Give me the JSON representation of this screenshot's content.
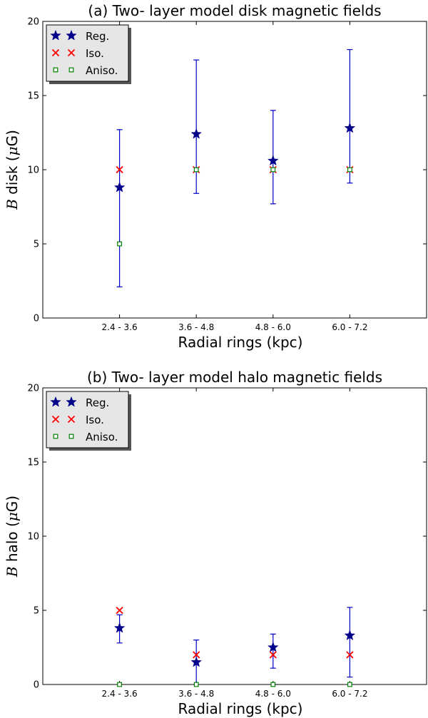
{
  "figure": {
    "legend_labels": [
      "Reg.",
      "Iso.",
      "Aniso."
    ],
    "colors": {
      "reg": "#00008b",
      "iso": "#ff0000",
      "aniso": "#008000",
      "errorbar": "#0000cc"
    }
  },
  "chart_data": [
    {
      "type": "scatter",
      "title": "(a) Two- layer model disk magnetic fields",
      "xlabel": "Radial rings (kpc)",
      "ylabel_var": "B",
      "ylabel_rest": " disk (",
      "ylabel_unit_mu": "μ",
      "ylabel_unit": "G)",
      "categories": [
        "2.4 - 3.6",
        "3.6 - 4.8",
        "4.8 - 6.0",
        "6.0 - 7.2"
      ],
      "ylim": [
        0,
        20
      ],
      "yticks": [
        "0",
        "5",
        "10",
        "15",
        "20"
      ],
      "grid": false,
      "legend_position": "top-left",
      "series": [
        {
          "name": "Reg.",
          "marker": "star",
          "values": [
            8.8,
            12.4,
            10.6,
            12.8
          ],
          "err_low": [
            2.1,
            8.4,
            7.7,
            9.1
          ],
          "err_high": [
            12.7,
            17.4,
            14.0,
            18.1
          ]
        },
        {
          "name": "Iso.",
          "marker": "x",
          "values": [
            10,
            10,
            10,
            10
          ]
        },
        {
          "name": "Aniso.",
          "marker": "square",
          "values": [
            5,
            10,
            10,
            10
          ]
        }
      ]
    },
    {
      "type": "scatter",
      "title": "(b) Two- layer model halo magnetic fields",
      "xlabel": "Radial rings (kpc)",
      "ylabel_var": "B",
      "ylabel_rest": " halo (",
      "ylabel_unit_mu": "μ",
      "ylabel_unit": "G)",
      "categories": [
        "2.4 - 3.6",
        "3.6 - 4.8",
        "4.8 - 6.0",
        "6.0 - 7.2"
      ],
      "ylim": [
        0,
        20
      ],
      "yticks": [
        "0",
        "5",
        "10",
        "15",
        "20"
      ],
      "grid": false,
      "legend_position": "top-left",
      "series": [
        {
          "name": "Reg.",
          "marker": "star",
          "values": [
            3.8,
            1.5,
            2.5,
            3.3
          ],
          "err_low": [
            2.8,
            0,
            1.1,
            0.5
          ],
          "err_high": [
            4.7,
            3.0,
            3.4,
            5.2
          ]
        },
        {
          "name": "Iso.",
          "marker": "x",
          "values": [
            5,
            2,
            2,
            2
          ]
        },
        {
          "name": "Aniso.",
          "marker": "square",
          "values": [
            0,
            0,
            0,
            0
          ]
        }
      ]
    }
  ]
}
